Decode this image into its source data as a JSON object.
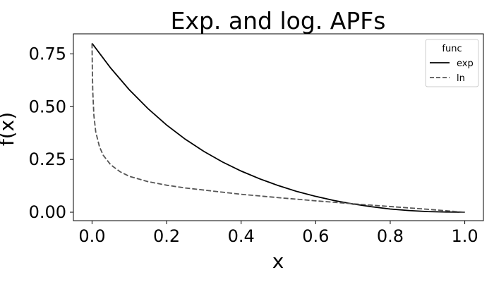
{
  "chart_data": {
    "type": "line",
    "title": "Exp. and log. APFs",
    "xlabel": "x",
    "ylabel": "f(x)",
    "xlim": [
      -0.05,
      1.05
    ],
    "ylim": [
      -0.04,
      0.845
    ],
    "xticks": [
      0.0,
      0.2,
      0.4,
      0.6,
      0.8,
      1.0
    ],
    "xtick_labels": [
      "0.0",
      "0.2",
      "0.4",
      "0.6",
      "0.8",
      "1.0"
    ],
    "yticks": [
      0.0,
      0.25,
      0.5,
      0.75
    ],
    "ytick_labels": [
      "0.00",
      "0.25",
      "0.50",
      "0.75"
    ],
    "grid": false,
    "legend": {
      "title": "func",
      "position": "top-right"
    },
    "series": [
      {
        "name": "exp",
        "style": "solid",
        "color": "#000000",
        "x": [
          0.0,
          0.05,
          0.1,
          0.15,
          0.2,
          0.25,
          0.3,
          0.35,
          0.4,
          0.45,
          0.5,
          0.55,
          0.6,
          0.65,
          0.7,
          0.75,
          0.8,
          0.85,
          0.9,
          0.95,
          1.0
        ],
        "y": [
          0.8,
          0.683,
          0.58,
          0.491,
          0.413,
          0.346,
          0.288,
          0.238,
          0.195,
          0.158,
          0.126,
          0.098,
          0.075,
          0.055,
          0.039,
          0.026,
          0.015,
          0.008,
          0.003,
          0.001,
          0.0
        ]
      },
      {
        "name": "ln",
        "style": "dashed",
        "color": "#555555",
        "x": [
          0.0,
          0.001,
          0.002,
          0.005,
          0.01,
          0.02,
          0.03,
          0.05,
          0.075,
          0.1,
          0.15,
          0.2,
          0.25,
          0.3,
          0.4,
          0.5,
          0.6,
          0.7,
          0.8,
          0.9,
          1.0
        ],
        "y": [
          0.8,
          0.656,
          0.571,
          0.458,
          0.38,
          0.31,
          0.27,
          0.225,
          0.192,
          0.17,
          0.145,
          0.128,
          0.115,
          0.105,
          0.085,
          0.069,
          0.054,
          0.04,
          0.027,
          0.014,
          0.0
        ]
      }
    ]
  }
}
